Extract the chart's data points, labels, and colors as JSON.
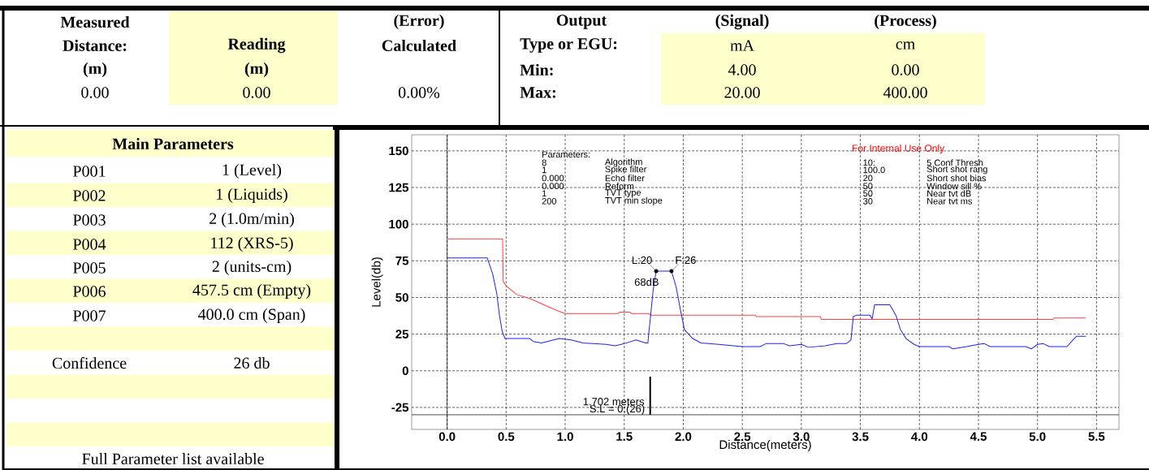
{
  "chart_data": [
    {
      "type": "other",
      "annotations": [
        "Measured",
        "Distance:",
        "(m)",
        "0.00",
        "Reading",
        "(m)",
        "0.00",
        "(Error)",
        "Calculated",
        "0.00%",
        "Output",
        "Type or EGU:",
        "Min:",
        "Max:",
        "(Signal)",
        "mA",
        "4.00",
        "20.00",
        "(Process)",
        "cm",
        "0.00",
        "400.00"
      ]
    },
    {
      "type": "other",
      "annotations": [
        "Main Parameters",
        "P001",
        "1 (Level)",
        "P002",
        "1 (Liquids)",
        "P003",
        "2 (1.0m/min)",
        "P004",
        "112 (XRS-5)",
        "P005",
        "2 (units-cm)",
        "P006",
        "457.5 cm (Empty)",
        "P007",
        "400.0 cm (Span)",
        "Confidence",
        "26 db",
        "Full Parameter list available"
      ]
    },
    {
      "type": "line",
      "xlabel": "Distance(meters)",
      "ylabel": "Level(db)",
      "xlim": [
        -0.3,
        5.69
      ],
      "ylim": [
        -40,
        161
      ],
      "xticks": [
        {
          "value": 0,
          "label": "0.0"
        },
        {
          "value": 0.5,
          "label": "0.5"
        },
        {
          "value": 1,
          "label": "1.0"
        },
        {
          "value": 1.5,
          "label": "1.5"
        },
        {
          "value": 2,
          "label": "2.0"
        },
        {
          "value": 2.5,
          "label": "2.5"
        },
        {
          "value": 3,
          "label": "3.0"
        },
        {
          "value": 3.5,
          "label": "3.5"
        },
        {
          "value": 4,
          "label": "4.0"
        },
        {
          "value": 4.5,
          "label": "4.5"
        },
        {
          "value": 5,
          "label": "5.0"
        },
        {
          "value": 5.5,
          "label": "5.5"
        }
      ],
      "yticks": [
        -25,
        0,
        25,
        50,
        75,
        100,
        125,
        150
      ],
      "grid": true,
      "ref_lines": [
        {
          "axis": "x",
          "value": 0
        },
        {
          "axis": "y",
          "value": -30
        }
      ],
      "series": [
        {
          "color": "#ff4040",
          "x": [
            0,
            0.47,
            0.475,
            0.5,
            0.59,
            0.71,
            0.82,
            0.935,
            1.0,
            1.45,
            1.46,
            1.55,
            1.56,
            1.71,
            1.72,
            2.61,
            2.62,
            3.16,
            3.17,
            5.13,
            5.14,
            5.41
          ],
          "values": [
            90,
            90,
            61,
            58,
            52,
            49,
            45,
            41,
            39,
            39,
            40,
            40,
            39,
            39,
            38,
            38,
            37,
            37,
            35,
            35,
            36,
            36
          ]
        },
        {
          "color": "#2020ff",
          "x": [
            0,
            0.34,
            0.386,
            0.42,
            0.443,
            0.466,
            0.49,
            0.7,
            0.73,
            0.8,
            0.95,
            1.05,
            1.15,
            1.35,
            1.42,
            1.5,
            1.6,
            1.68,
            1.7,
            1.72,
            1.745,
            1.77,
            1.9,
            1.94,
            1.975,
            2.01,
            2.08,
            2.15,
            2.3,
            2.5,
            2.65,
            2.7,
            2.85,
            2.9,
            3.0,
            3.06,
            3.2,
            3.3,
            3.38,
            3.42,
            3.44,
            3.47,
            3.58,
            3.6,
            3.62,
            3.75,
            3.8,
            3.84,
            3.886,
            3.955,
            4.0,
            4.25,
            4.28,
            4.4,
            4.5,
            4.55,
            4.6,
            4.9,
            4.95,
            5.0,
            5.05,
            5.1,
            5.25,
            5.3,
            5.33,
            5.41
          ],
          "values": [
            77,
            77,
            66,
            53,
            38,
            27,
            22,
            22,
            20,
            19,
            22,
            21,
            19,
            18,
            17,
            18.5,
            21,
            19,
            19,
            35,
            55,
            68,
            68,
            57,
            42,
            28,
            22,
            19,
            18,
            16.5,
            16.5,
            18.5,
            18.5,
            17,
            18,
            16,
            17,
            18.5,
            18.5,
            21,
            37,
            38,
            38,
            35.5,
            45,
            45,
            38,
            28,
            22,
            18,
            16.5,
            16.5,
            15,
            16.5,
            18,
            18.5,
            16.5,
            16.5,
            15,
            18,
            18.5,
            16.5,
            16.5,
            21,
            23.5,
            23.5
          ]
        }
      ],
      "annotations": [
        "Parameters:",
        "8",
        "Algorithm",
        "1",
        "Spike filter",
        "0.000",
        "Echo filter",
        "0.000",
        "Reform",
        "1",
        "TVT type",
        "200",
        "TVT min slope",
        "10:",
        "5 Conf Thresh",
        "100.0",
        "Short shot rang",
        "20",
        "Short shot bias",
        "50",
        "Window sill %",
        "50",
        "Near tvt dB",
        "30",
        "Near tvt ms",
        "For Internal Use Only",
        {
          "text": "L:20",
          "x": 1.77,
          "y": 68
        },
        {
          "text": "F:26",
          "x": 1.9,
          "y": 68
        },
        "68dB",
        "1.702 meters",
        "S:L = 0:(26)"
      ]
    }
  ]
}
